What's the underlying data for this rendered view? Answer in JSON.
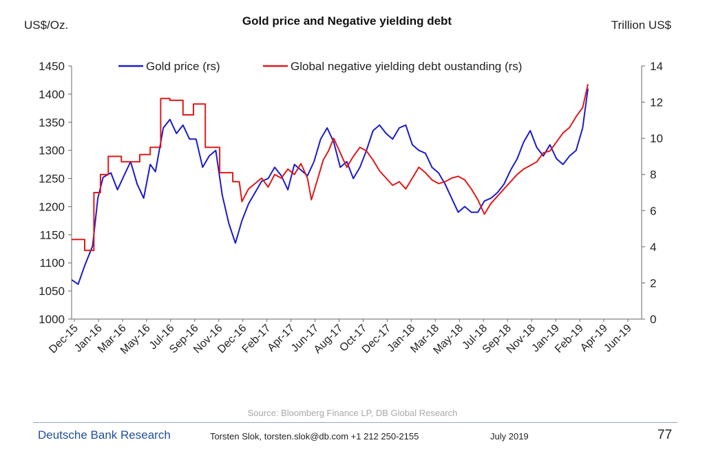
{
  "chart_data": {
    "type": "line",
    "title": "Gold price and Negative yielding debt",
    "ylabel_left": "US$/Oz.",
    "ylabel_right": "Trillion US$",
    "ylim_left": [
      1000,
      1450
    ],
    "yticks_left": [
      1000,
      1050,
      1100,
      1150,
      1200,
      1250,
      1300,
      1350,
      1400,
      1450
    ],
    "ylim_right": [
      0,
      14
    ],
    "yticks_right": [
      0,
      2,
      4,
      6,
      8,
      10,
      12,
      14
    ],
    "xlim": [
      0,
      43.5
    ],
    "x_unit": "months since Dec-15",
    "x_tick_labels": [
      "Dec-15",
      "Jan-16",
      "Mar-16",
      "May-16",
      "Jul-16",
      "Sep-16",
      "Nov-16",
      "Dec-16",
      "Feb-17",
      "Apr-17",
      "Jun-17",
      "Aug-17",
      "Oct-17",
      "Dec-17",
      "Jan-18",
      "Mar-18",
      "May-18",
      "Jul-18",
      "Sep-18",
      "Nov-18",
      "Jan-19",
      "Feb-19",
      "Apr-19",
      "Jun-19"
    ],
    "legend": [
      "Gold price (rs)",
      "Global negative yielding debt oustanding (rs)"
    ],
    "source": "Source: Bloomberg Finance LP,  DB Global Research",
    "series": [
      {
        "name": "Gold price (rs)",
        "axis": "left",
        "color": "#1a1acc",
        "points": [
          [
            0,
            1070
          ],
          [
            0.5,
            1062
          ],
          [
            1,
            1095
          ],
          [
            1.6,
            1130
          ],
          [
            2,
            1215
          ],
          [
            2.4,
            1252
          ],
          [
            3,
            1260
          ],
          [
            3.5,
            1230
          ],
          [
            4,
            1255
          ],
          [
            4.5,
            1280
          ],
          [
            5,
            1240
          ],
          [
            5.5,
            1215
          ],
          [
            6,
            1275
          ],
          [
            6.4,
            1262
          ],
          [
            7,
            1340
          ],
          [
            7.5,
            1355
          ],
          [
            8,
            1330
          ],
          [
            8.5,
            1345
          ],
          [
            9,
            1320
          ],
          [
            9.5,
            1320
          ],
          [
            10,
            1270
          ],
          [
            10.5,
            1290
          ],
          [
            11,
            1300
          ],
          [
            11.5,
            1220
          ],
          [
            12,
            1170
          ],
          [
            12.5,
            1135
          ],
          [
            13,
            1175
          ],
          [
            13.5,
            1205
          ],
          [
            14,
            1225
          ],
          [
            14.5,
            1245
          ],
          [
            15,
            1250
          ],
          [
            15.5,
            1270
          ],
          [
            16,
            1255
          ],
          [
            16.5,
            1230
          ],
          [
            17,
            1275
          ],
          [
            17.5,
            1265
          ],
          [
            18,
            1255
          ],
          [
            18.5,
            1280
          ],
          [
            19,
            1320
          ],
          [
            19.5,
            1340
          ],
          [
            20,
            1315
          ],
          [
            20.5,
            1270
          ],
          [
            21,
            1280
          ],
          [
            21.5,
            1250
          ],
          [
            22,
            1270
          ],
          [
            22.5,
            1300
          ],
          [
            23,
            1335
          ],
          [
            23.5,
            1345
          ],
          [
            24,
            1330
          ],
          [
            24.5,
            1320
          ],
          [
            25,
            1340
          ],
          [
            25.5,
            1345
          ],
          [
            26,
            1310
          ],
          [
            26.5,
            1300
          ],
          [
            27,
            1295
          ],
          [
            27.5,
            1270
          ],
          [
            28,
            1260
          ],
          [
            28.5,
            1240
          ],
          [
            29,
            1215
          ],
          [
            29.5,
            1190
          ],
          [
            30,
            1200
          ],
          [
            30.5,
            1190
          ],
          [
            31,
            1190
          ],
          [
            31.5,
            1210
          ],
          [
            32,
            1215
          ],
          [
            32.5,
            1225
          ],
          [
            33,
            1240
          ],
          [
            33.5,
            1265
          ],
          [
            34,
            1285
          ],
          [
            34.5,
            1315
          ],
          [
            35,
            1335
          ],
          [
            35.5,
            1305
          ],
          [
            36,
            1290
          ],
          [
            36.5,
            1310
          ],
          [
            37,
            1285
          ],
          [
            37.5,
            1275
          ],
          [
            38,
            1290
          ],
          [
            38.5,
            1300
          ],
          [
            39,
            1340
          ],
          [
            39.4,
            1410
          ]
        ]
      },
      {
        "name": "Global negative yielding debt oustanding (rs)",
        "axis": "right",
        "color": "#e01818",
        "points": [
          [
            0,
            4.4
          ],
          [
            1,
            4.4
          ],
          [
            1,
            3.8
          ],
          [
            1.7,
            3.8
          ],
          [
            1.7,
            7
          ],
          [
            2.2,
            7
          ],
          [
            2.2,
            8
          ],
          [
            2.8,
            8
          ],
          [
            2.8,
            9
          ],
          [
            3.8,
            9
          ],
          [
            3.8,
            8.7
          ],
          [
            5.2,
            8.7
          ],
          [
            5.2,
            9.1
          ],
          [
            6,
            9.1
          ],
          [
            6,
            9.5
          ],
          [
            6.8,
            9.5
          ],
          [
            6.8,
            12.2
          ],
          [
            7.5,
            12.2
          ],
          [
            7.5,
            12.1
          ],
          [
            8.5,
            12.1
          ],
          [
            8.5,
            11.3
          ],
          [
            9.3,
            11.3
          ],
          [
            9.3,
            11.9
          ],
          [
            10.2,
            11.9
          ],
          [
            10.2,
            9.5
          ],
          [
            11.3,
            9.5
          ],
          [
            11.3,
            8.1
          ],
          [
            12.3,
            8.1
          ],
          [
            12.3,
            7.6
          ],
          [
            12.8,
            7.6
          ],
          [
            13,
            6.5
          ],
          [
            13.5,
            7.2
          ],
          [
            14,
            7.5
          ],
          [
            14.5,
            7.8
          ],
          [
            15,
            7.3
          ],
          [
            15.5,
            8
          ],
          [
            16,
            7.8
          ],
          [
            16.5,
            8.3
          ],
          [
            17,
            8
          ],
          [
            17.5,
            8.6
          ],
          [
            18,
            7.8
          ],
          [
            18.3,
            6.6
          ],
          [
            18.8,
            7.8
          ],
          [
            19.2,
            8.8
          ],
          [
            19.6,
            9.3
          ],
          [
            20,
            10
          ],
          [
            20.5,
            9.2
          ],
          [
            21,
            8.4
          ],
          [
            21.5,
            9
          ],
          [
            22,
            9.5
          ],
          [
            22.5,
            9.3
          ],
          [
            23,
            8.8
          ],
          [
            23.5,
            8.2
          ],
          [
            24,
            7.8
          ],
          [
            24.5,
            7.4
          ],
          [
            25,
            7.6
          ],
          [
            25.5,
            7.2
          ],
          [
            26,
            7.8
          ],
          [
            26.5,
            8.4
          ],
          [
            27,
            8.1
          ],
          [
            27.5,
            7.7
          ],
          [
            28,
            7.5
          ],
          [
            28.5,
            7.6
          ],
          [
            29,
            7.8
          ],
          [
            29.5,
            7.9
          ],
          [
            30,
            7.7
          ],
          [
            30.5,
            7.2
          ],
          [
            31,
            6.6
          ],
          [
            31.5,
            5.8
          ],
          [
            32,
            6.4
          ],
          [
            32.5,
            6.8
          ],
          [
            33,
            7.2
          ],
          [
            33.5,
            7.6
          ],
          [
            34,
            8
          ],
          [
            34.5,
            8.3
          ],
          [
            35,
            8.5
          ],
          [
            35.5,
            8.7
          ],
          [
            36,
            9.2
          ],
          [
            36.5,
            9.3
          ],
          [
            37,
            9.8
          ],
          [
            37.5,
            10.3
          ],
          [
            38,
            10.6
          ],
          [
            38.5,
            11.2
          ],
          [
            39,
            11.7
          ],
          [
            39.4,
            13
          ]
        ]
      }
    ]
  },
  "footer": {
    "org": "Deutsche Bank Research",
    "contact": "Torsten Slok, torsten.slok@db.com  +1 212 250-2155",
    "date": "July 2019",
    "page": "77"
  }
}
